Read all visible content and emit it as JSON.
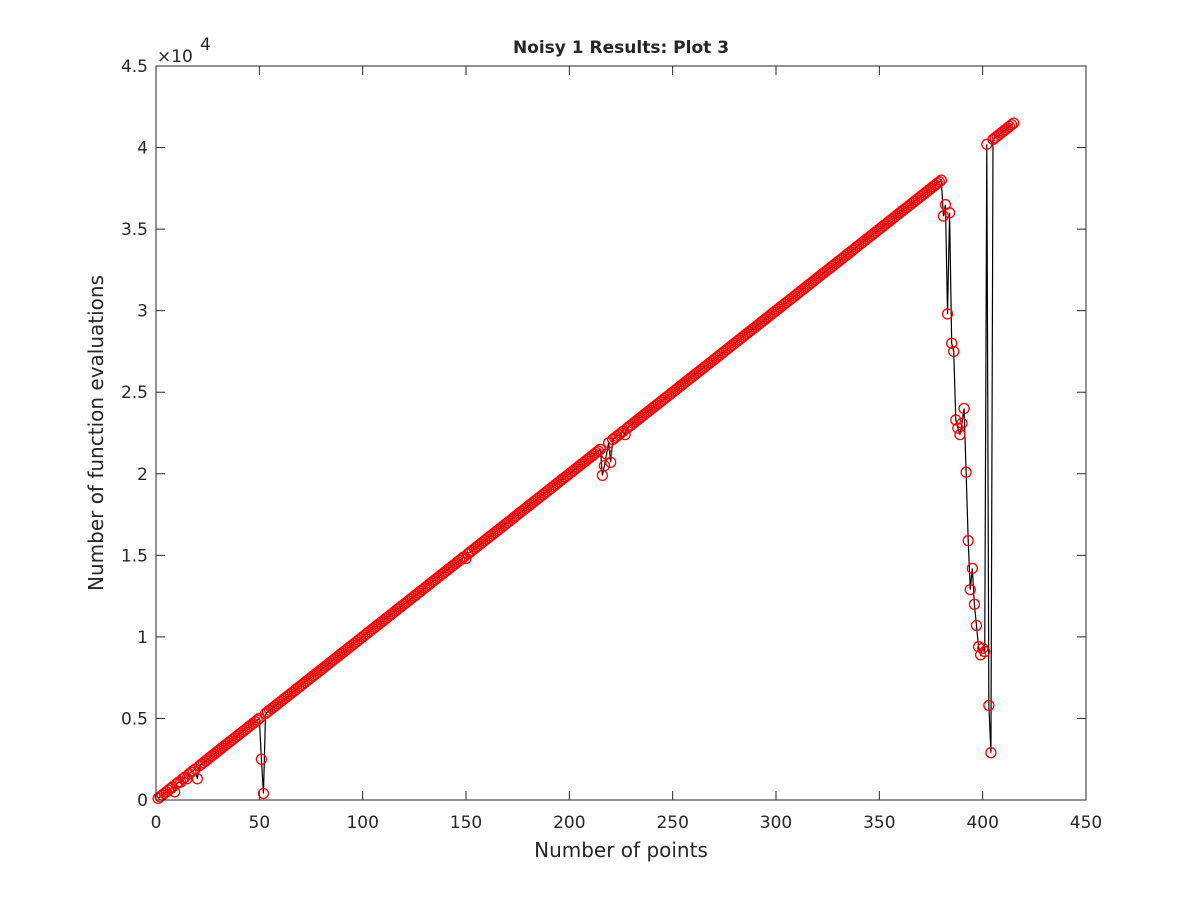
{
  "chart_data": {
    "type": "line",
    "title": "Noisy 1 Results:  Plot 3",
    "xlabel": "Number of points",
    "ylabel": "Number of function evaluations",
    "y_multiplier_label": "×10",
    "y_multiplier_exponent": "4",
    "xlim": [
      0,
      450
    ],
    "ylim": [
      0,
      45000
    ],
    "x_ticks": [
      0,
      50,
      100,
      150,
      200,
      250,
      300,
      350,
      400,
      450
    ],
    "x_tick_labels": [
      "0",
      "50",
      "100",
      "150",
      "200",
      "250",
      "300",
      "350",
      "400",
      "450"
    ],
    "y_ticks": [
      0,
      5000,
      10000,
      15000,
      20000,
      25000,
      30000,
      35000,
      40000,
      45000
    ],
    "y_tick_labels": [
      "0",
      "0.5",
      "1",
      "1.5",
      "2",
      "2.5",
      "3",
      "3.5",
      "4",
      "4.5"
    ],
    "grid": false,
    "line_color": "#000000",
    "marker_color": "#ff0000",
    "marker": "circle",
    "series_description": "approx. linear trend y ≈ 100·x for x = 1..415 with deviations listed below",
    "linear_trend": {
      "x_start": 1,
      "x_end": 415,
      "y_per_x": 100
    },
    "outliers": [
      {
        "x": 9,
        "y": 500
      },
      {
        "x": 12,
        "y": 1100
      },
      {
        "x": 15,
        "y": 1300
      },
      {
        "x": 18,
        "y": 1800
      },
      {
        "x": 20,
        "y": 1300
      },
      {
        "x": 51,
        "y": 2500
      },
      {
        "x": 52,
        "y": 400
      },
      {
        "x": 216,
        "y": 19900
      },
      {
        "x": 217,
        "y": 20500
      },
      {
        "x": 218,
        "y": 21200
      },
      {
        "x": 220,
        "y": 20700
      },
      {
        "x": 221,
        "y": 22100
      },
      {
        "x": 227,
        "y": 22400
      },
      {
        "x": 150,
        "y": 14800
      },
      {
        "x": 381,
        "y": 35800
      },
      {
        "x": 382,
        "y": 36500
      },
      {
        "x": 383,
        "y": 29800
      },
      {
        "x": 384,
        "y": 36000
      },
      {
        "x": 385,
        "y": 28000
      },
      {
        "x": 386,
        "y": 27500
      },
      {
        "x": 387,
        "y": 23300
      },
      {
        "x": 388,
        "y": 22800
      },
      {
        "x": 389,
        "y": 22400
      },
      {
        "x": 390,
        "y": 23100
      },
      {
        "x": 391,
        "y": 24000
      },
      {
        "x": 392,
        "y": 20100
      },
      {
        "x": 393,
        "y": 15900
      },
      {
        "x": 394,
        "y": 12900
      },
      {
        "x": 395,
        "y": 14200
      },
      {
        "x": 396,
        "y": 12000
      },
      {
        "x": 397,
        "y": 10700
      },
      {
        "x": 398,
        "y": 9400
      },
      {
        "x": 399,
        "y": 8900
      },
      {
        "x": 400,
        "y": 9300
      },
      {
        "x": 401,
        "y": 9100
      },
      {
        "x": 402,
        "y": 40200
      },
      {
        "x": 403,
        "y": 5800
      },
      {
        "x": 404,
        "y": 2900
      }
    ]
  }
}
